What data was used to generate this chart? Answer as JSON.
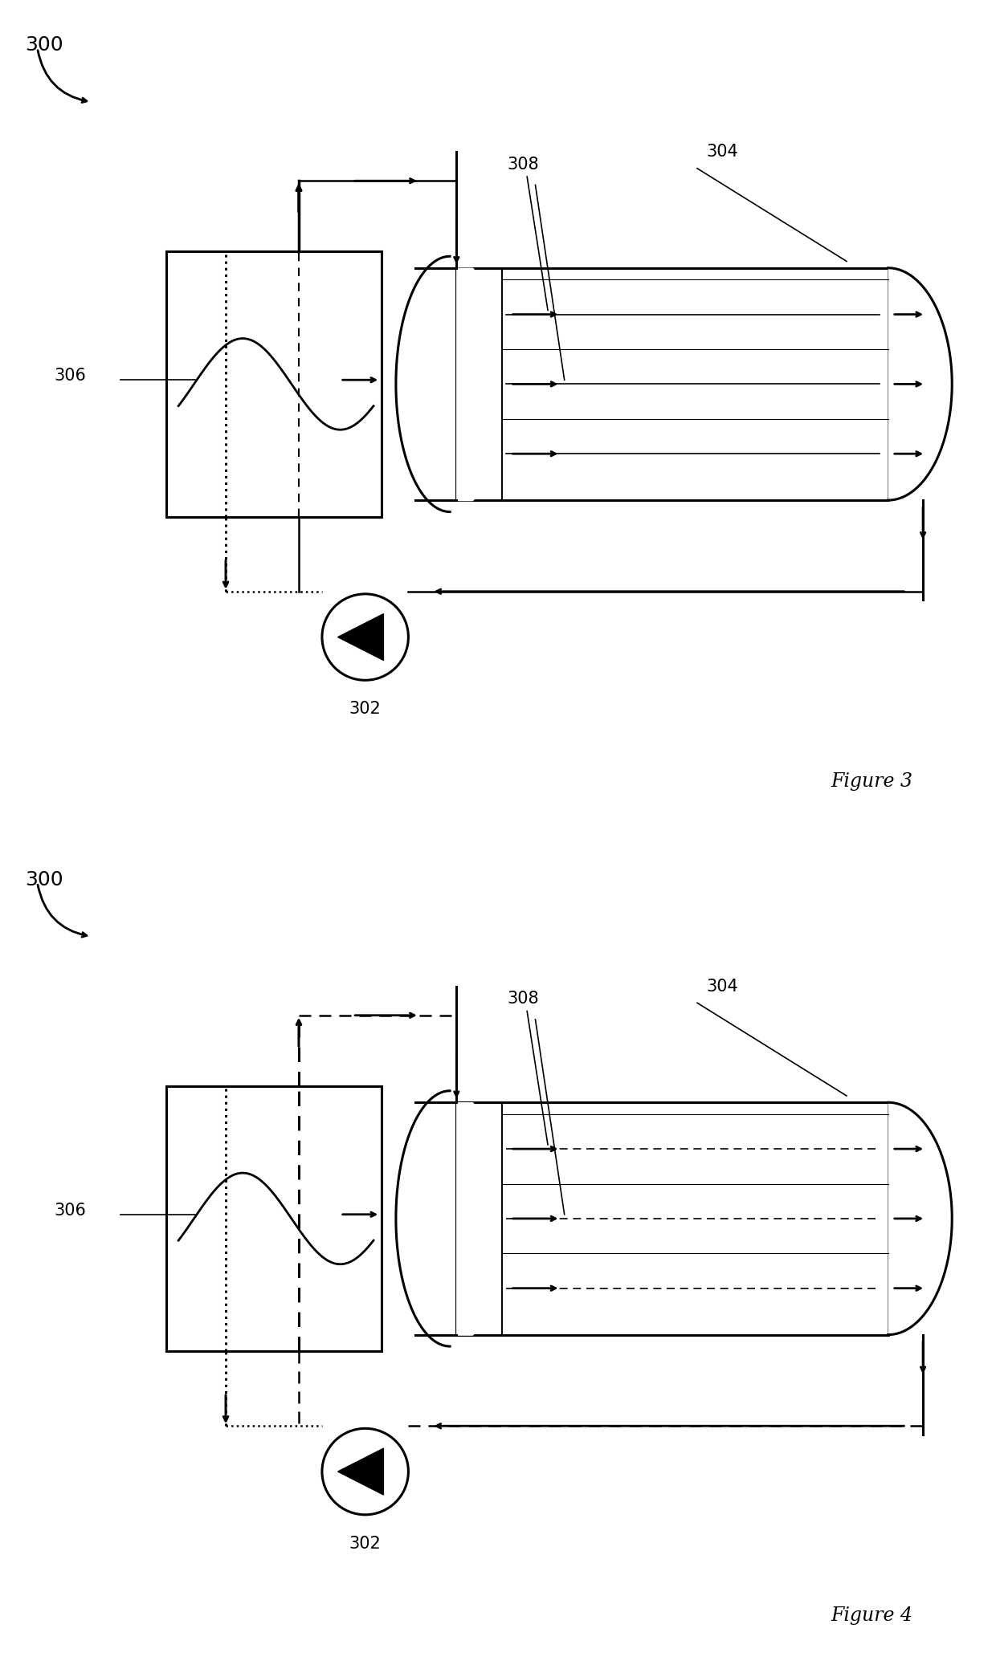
{
  "fig3": {
    "title": "Figure 3",
    "label_300": "300",
    "label_302": "302",
    "label_304": "304",
    "label_306": "306",
    "label_308": "308"
  },
  "fig4": {
    "title": "Figure 4",
    "label_300": "300",
    "label_302": "302",
    "label_304": "304",
    "label_306": "306",
    "label_308": "308"
  },
  "background_color": "#ffffff"
}
